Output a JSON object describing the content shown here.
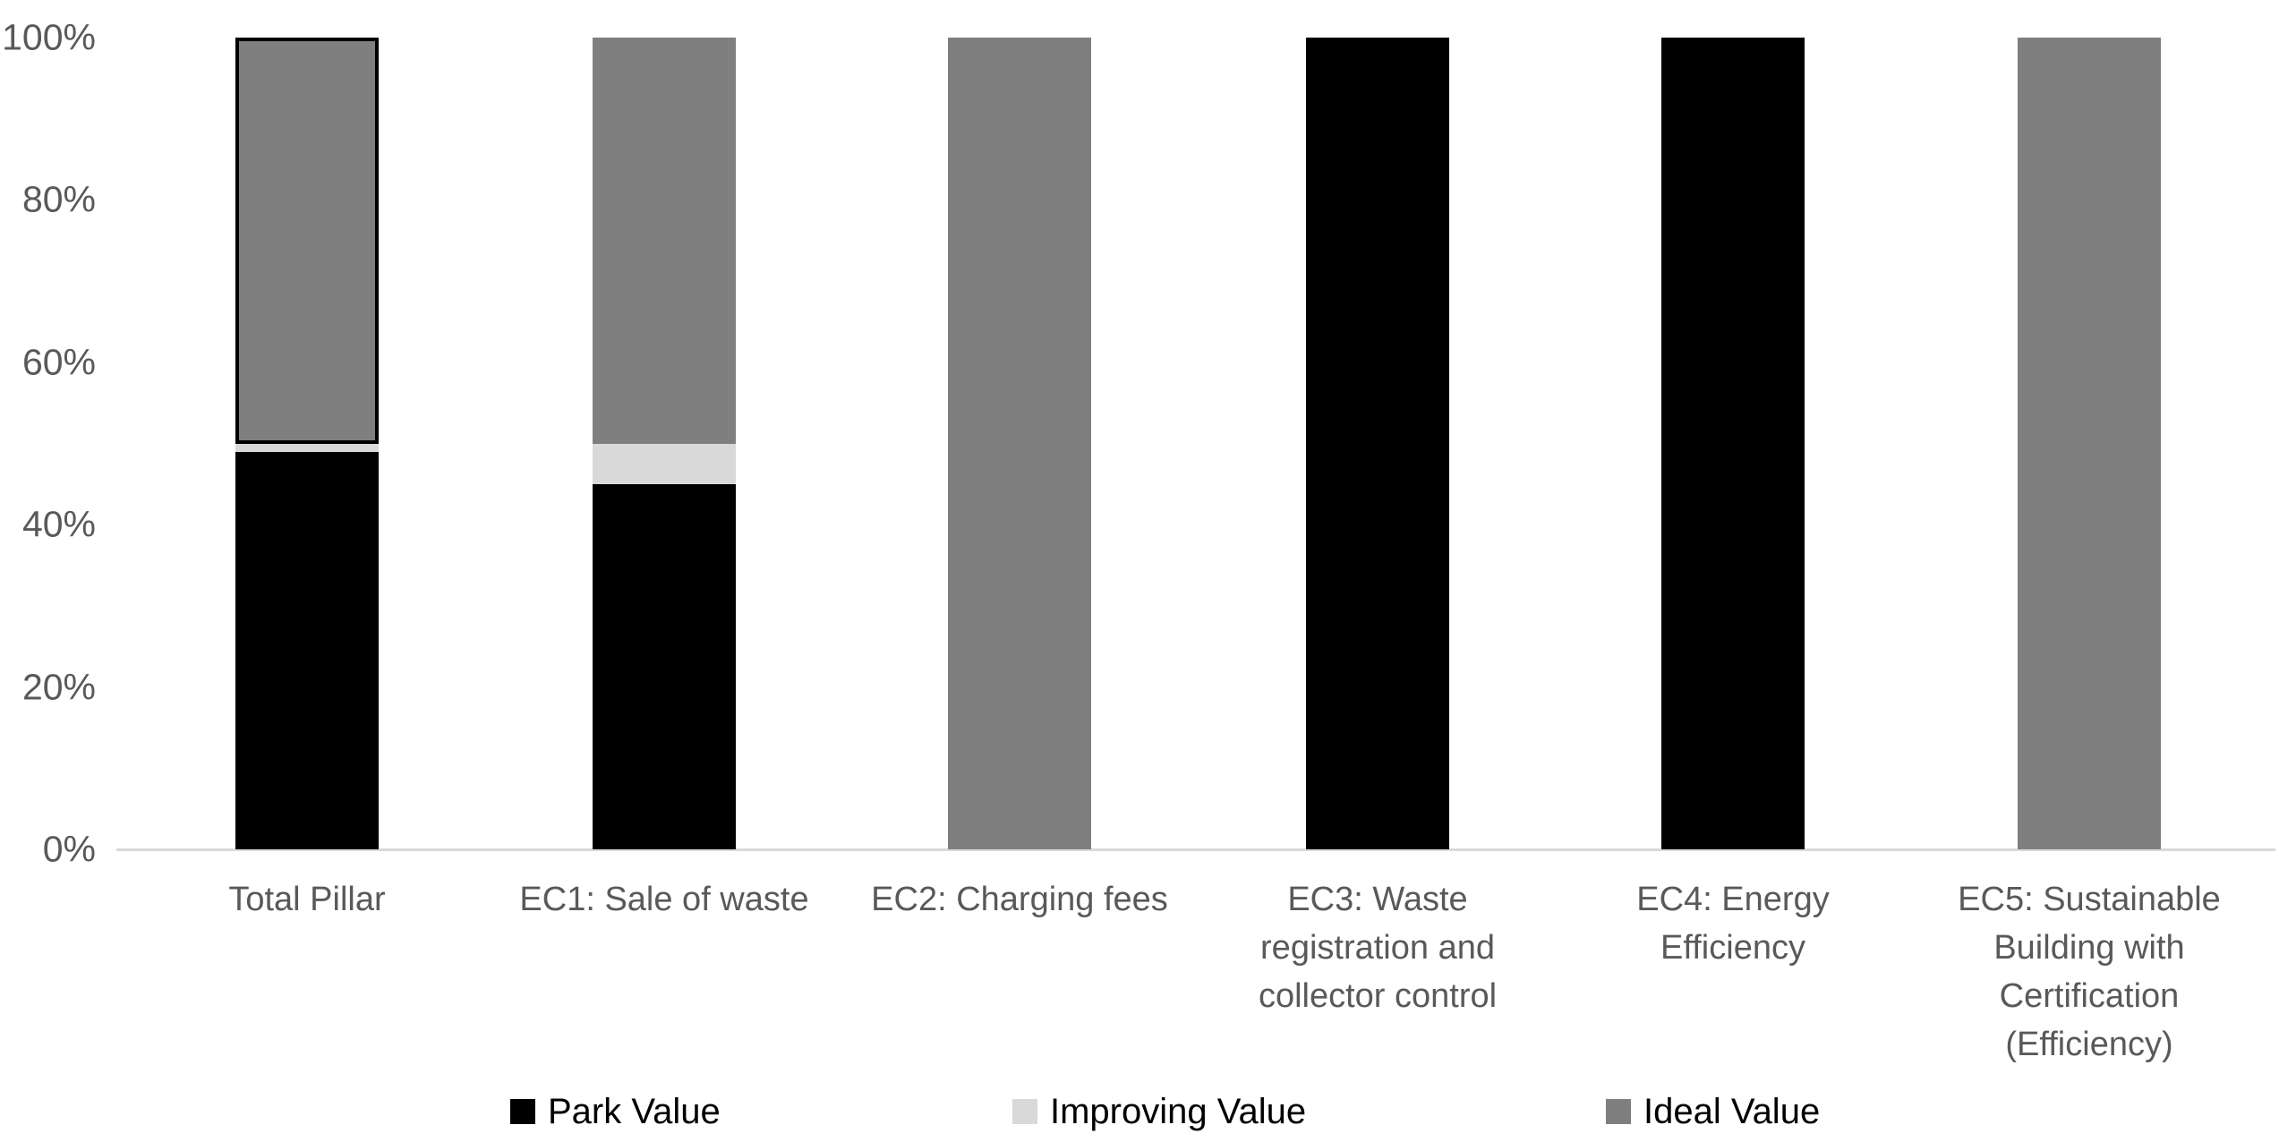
{
  "chart_data": {
    "type": "bar",
    "variant": "stacked-100-percent",
    "title": "",
    "categories": [
      {
        "label": "Total Pillar",
        "lines": [
          "Total Pillar"
        ]
      },
      {
        "label": "EC1: Sale of waste",
        "lines": [
          "EC1: Sale of waste"
        ]
      },
      {
        "label": "EC2: Charging fees",
        "lines": [
          "EC2: Charging fees"
        ]
      },
      {
        "label": "EC3: Waste registration and collector control",
        "lines": [
          "EC3: Waste",
          "registration and",
          "collector control"
        ]
      },
      {
        "label": "EC4: Energy Efficiency",
        "lines": [
          "EC4: Energy",
          "Efficiency"
        ]
      },
      {
        "label": "EC5: Sustainable Building with Certification (Efficiency)",
        "lines": [
          "EC5: Sustainable",
          "Building with",
          "Certification",
          "(Efficiency)"
        ]
      }
    ],
    "series": [
      {
        "name": "Park Value",
        "color": "#000000",
        "values": [
          49,
          45,
          0,
          100,
          100,
          0
        ]
      },
      {
        "name": "Improving Value",
        "color": "#d9d9d9",
        "values": [
          1,
          5,
          0,
          0,
          0,
          0
        ]
      },
      {
        "name": "Ideal Value",
        "color": "#7f7f7f",
        "values": [
          50,
          50,
          100,
          0,
          0,
          100
        ]
      }
    ],
    "stack_order_bottom_to_top": [
      "Park Value",
      "Improving Value",
      "Ideal Value"
    ],
    "y_axis": {
      "min": 0,
      "max": 100,
      "unit": "%",
      "ticks": [
        "0%",
        "20%",
        "40%",
        "60%",
        "80%",
        "100%"
      ]
    },
    "x_axis": {
      "label": ""
    },
    "legend": {
      "position": "bottom",
      "entries": [
        "Park Value",
        "Improving Value",
        "Ideal Value"
      ]
    },
    "grid": false,
    "highlight": {
      "category": "Total Pillar",
      "series": "Ideal Value",
      "outline_color": "#000000"
    },
    "colors": {
      "background": "#ffffff",
      "axis_line": "#d9d9d9",
      "tick_label": "#595959",
      "category_label": "#595959",
      "legend_label": "#000000"
    }
  }
}
